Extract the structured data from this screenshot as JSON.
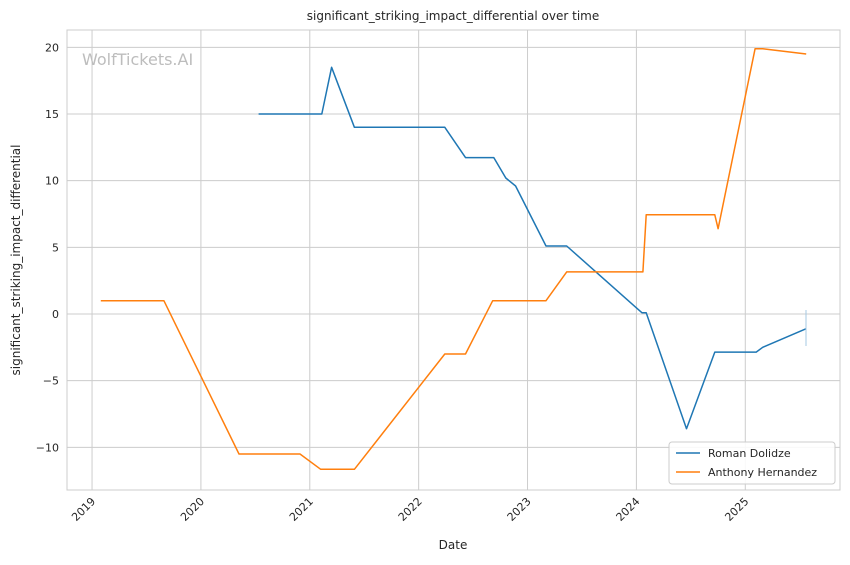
{
  "chart_data": {
    "type": "line",
    "title": "significant_striking_impact_differential over time",
    "xlabel": "Date",
    "ylabel": "significant_striking_impact_differential",
    "watermark": "WolfTickets.AI",
    "xlim": [
      2018.77,
      2025.87
    ],
    "ylim": [
      -13.2,
      21.3
    ],
    "xticks": [
      2019,
      2020,
      2021,
      2022,
      2023,
      2024,
      2025
    ],
    "xtick_labels": [
      "2019",
      "2020",
      "2021",
      "2022",
      "2023",
      "2024",
      "2025"
    ],
    "yticks": [
      -10,
      -5,
      0,
      5,
      10,
      15,
      20
    ],
    "ytick_labels": [
      "−10",
      "−5",
      "0",
      "5",
      "10",
      "15",
      "20"
    ],
    "grid": true,
    "legend_position": "bottom-right",
    "series": [
      {
        "name": "Roman Dolidze",
        "color": "#1f77b4",
        "x": [
          2020.53,
          2021.11,
          2021.2,
          2021.41,
          2022.24,
          2022.43,
          2022.69,
          2022.8,
          2022.89,
          2023.17,
          2023.36,
          2024.05,
          2024.09,
          2024.46,
          2024.72,
          2025.1,
          2025.16,
          2025.56
        ],
        "y": [
          15.0,
          15.0,
          18.5,
          14.0,
          14.0,
          11.73,
          11.73,
          10.2,
          9.6,
          5.1,
          5.1,
          0.1,
          0.1,
          -8.6,
          -2.86,
          -2.86,
          -2.5,
          -1.1
        ]
      },
      {
        "name": "Anthony Hernandez",
        "color": "#ff7f0e",
        "x": [
          2019.08,
          2019.66,
          2020.35,
          2020.91,
          2021.1,
          2021.41,
          2022.24,
          2022.43,
          2022.68,
          2023.17,
          2023.36,
          2024.06,
          2024.09,
          2024.72,
          2024.75,
          2025.09,
          2025.16,
          2025.56
        ],
        "y": [
          1.0,
          1.0,
          -10.5,
          -10.5,
          -11.65,
          -11.65,
          -3.0,
          -3.0,
          1.0,
          1.0,
          3.16,
          3.16,
          7.44,
          7.44,
          6.4,
          19.9,
          19.9,
          19.5
        ]
      }
    ]
  }
}
